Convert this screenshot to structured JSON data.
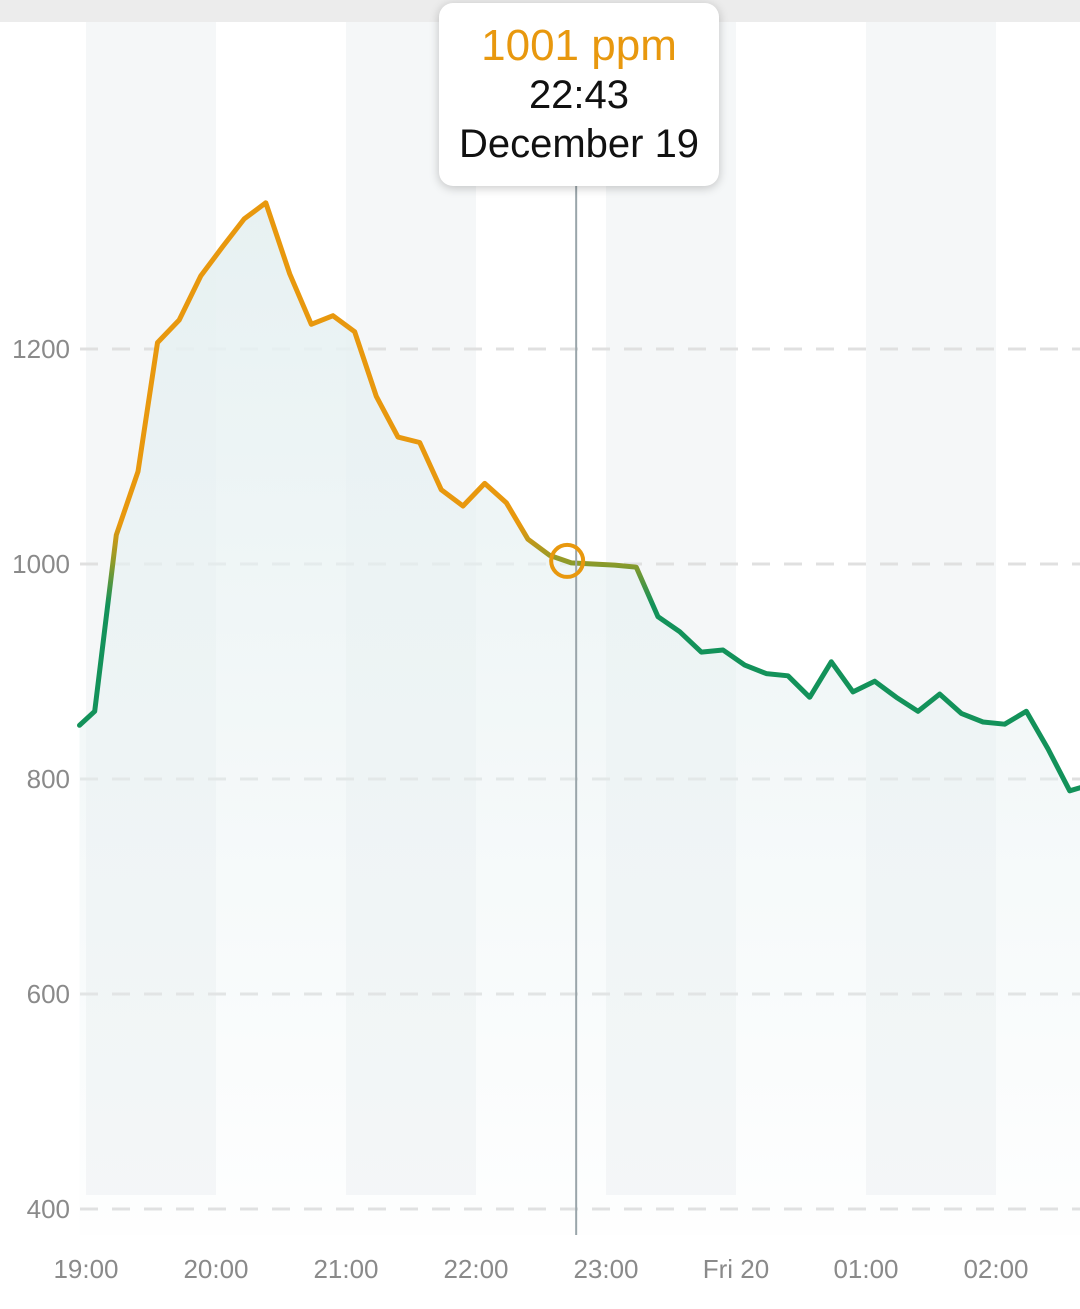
{
  "chart_data": {
    "type": "line",
    "unit": "ppm",
    "y_ticks": [
      400,
      600,
      800,
      1000,
      1200
    ],
    "x_ticks": [
      {
        "label": "19:00",
        "t": 0
      },
      {
        "label": "20:00",
        "t": 60
      },
      {
        "label": "21:00",
        "t": 120
      },
      {
        "label": "22:00",
        "t": 180
      },
      {
        "label": "23:00",
        "t": 240
      },
      {
        "label": "Fri 20",
        "t": 300
      },
      {
        "label": "01:00",
        "t": 360
      },
      {
        "label": "02:00",
        "t": 420
      }
    ],
    "xlim": [
      -3,
      460
    ],
    "ylim": [
      400,
      1400
    ],
    "threshold": 1000,
    "colors": {
      "above_threshold": "#e8980e",
      "below_threshold": "#13925a",
      "area_fill": "#e7f1f2",
      "grid": "#e0e0e0",
      "crosshair": "#9aa5aa"
    },
    "grid": "horizontal dashed",
    "points": [
      {
        "t": -3,
        "v": 850
      },
      {
        "t": 4,
        "v": 863
      },
      {
        "t": 14,
        "v": 1027
      },
      {
        "t": 24,
        "v": 1086
      },
      {
        "t": 33,
        "v": 1206
      },
      {
        "t": 43,
        "v": 1227
      },
      {
        "t": 53,
        "v": 1268
      },
      {
        "t": 63,
        "v": 1295
      },
      {
        "t": 73,
        "v": 1321
      },
      {
        "t": 83,
        "v": 1336
      },
      {
        "t": 94,
        "v": 1270
      },
      {
        "t": 104,
        "v": 1223
      },
      {
        "t": 114,
        "v": 1231
      },
      {
        "t": 124,
        "v": 1216
      },
      {
        "t": 134,
        "v": 1156
      },
      {
        "t": 144,
        "v": 1118
      },
      {
        "t": 154,
        "v": 1113
      },
      {
        "t": 164,
        "v": 1069
      },
      {
        "t": 174,
        "v": 1054
      },
      {
        "t": 184,
        "v": 1075
      },
      {
        "t": 194,
        "v": 1057
      },
      {
        "t": 204,
        "v": 1023
      },
      {
        "t": 214,
        "v": 1008
      },
      {
        "t": 224,
        "v": 1001
      },
      {
        "t": 234,
        "v": 1000
      },
      {
        "t": 244,
        "v": 999
      },
      {
        "t": 254,
        "v": 997
      },
      {
        "t": 264,
        "v": 951
      },
      {
        "t": 274,
        "v": 937
      },
      {
        "t": 284,
        "v": 918
      },
      {
        "t": 294,
        "v": 920
      },
      {
        "t": 304,
        "v": 906
      },
      {
        "t": 314,
        "v": 898
      },
      {
        "t": 324,
        "v": 896
      },
      {
        "t": 334,
        "v": 876
      },
      {
        "t": 344,
        "v": 909
      },
      {
        "t": 354,
        "v": 881
      },
      {
        "t": 364,
        "v": 891
      },
      {
        "t": 374,
        "v": 876
      },
      {
        "t": 384,
        "v": 863
      },
      {
        "t": 394,
        "v": 879
      },
      {
        "t": 404,
        "v": 861
      },
      {
        "t": 414,
        "v": 853
      },
      {
        "t": 424,
        "v": 851
      },
      {
        "t": 434,
        "v": 863
      },
      {
        "t": 444,
        "v": 828
      },
      {
        "t": 454,
        "v": 789
      },
      {
        "t": 459,
        "v": 792
      }
    ],
    "selected": {
      "t": 223,
      "v": 1001
    }
  },
  "tooltip": {
    "value": "1001 ppm",
    "time": "22:43",
    "date": "December 19"
  }
}
